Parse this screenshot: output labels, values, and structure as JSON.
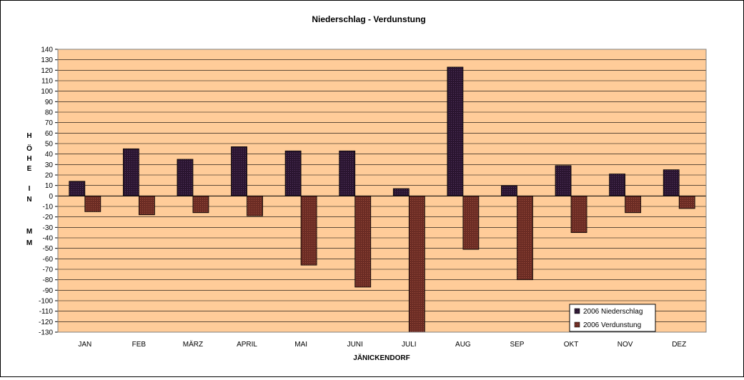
{
  "chart_data": {
    "type": "bar",
    "title": "Niederschlag  -  Verdunstung",
    "xlabel": "JÄNICKENDORF",
    "ylabel_letters": [
      "H",
      "Ö",
      "H",
      "E",
      "",
      "I",
      "N",
      "",
      "M",
      "M"
    ],
    "categories": [
      "JAN",
      "FEB",
      "MÄRZ",
      "APRIL",
      "MAI",
      "JUNI",
      "JULI",
      "AUG",
      "SEP",
      "OKT",
      "NOV",
      "DEZ"
    ],
    "ylim": [
      -130,
      140
    ],
    "ytick_step": 10,
    "grid": true,
    "legend_position": "bottom-right",
    "series": [
      {
        "name": "2006 Niederschlag",
        "color": "#2a1530",
        "values": [
          14,
          45,
          35,
          47,
          43,
          43,
          7,
          123,
          10,
          29,
          21,
          25
        ]
      },
      {
        "name": "2006 Verdunstung",
        "color": "#6b2c24",
        "values": [
          -15,
          -18,
          -16,
          -19,
          -66,
          -87,
          -131,
          -51,
          -80,
          -35,
          -16,
          -12
        ]
      }
    ],
    "colors": {
      "plot_background": "#ffcc99",
      "gridline": "#000000"
    }
  }
}
